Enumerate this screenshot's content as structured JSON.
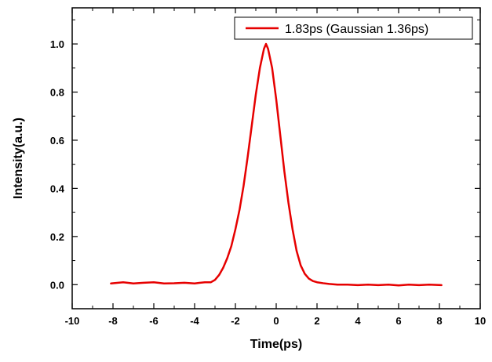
{
  "chart_data": {
    "type": "line",
    "title": "",
    "xlabel": "Time(ps)",
    "ylabel": "Intensity(a.u.)",
    "xlim": [
      -10,
      10
    ],
    "ylim": [
      -0.1,
      1.15
    ],
    "xticks": [
      -10,
      -8,
      -6,
      -4,
      -2,
      0,
      2,
      4,
      6,
      8,
      10
    ],
    "yticks": [
      0.0,
      0.2,
      0.4,
      0.6,
      0.8,
      1.0
    ],
    "xtick_labels": [
      "-10",
      "-8",
      "-6",
      "-4",
      "-2",
      "0",
      "2",
      "4",
      "6",
      "8",
      "10"
    ],
    "ytick_labels": [
      "0.0",
      "0.2",
      "0.4",
      "0.6",
      "0.8",
      "1.0"
    ],
    "grid": false,
    "legend_position": "top-right",
    "series": [
      {
        "name": "1.83ps (Gaussian 1.36ps)",
        "color": "#e60000",
        "x": [
          -8.1,
          -7.5,
          -7.0,
          -6.5,
          -6.0,
          -5.5,
          -5.0,
          -4.5,
          -4.0,
          -3.5,
          -3.2,
          -3.0,
          -2.8,
          -2.6,
          -2.4,
          -2.2,
          -2.0,
          -1.8,
          -1.6,
          -1.4,
          -1.2,
          -1.0,
          -0.8,
          -0.6,
          -0.5,
          -0.4,
          -0.2,
          0.0,
          0.2,
          0.4,
          0.6,
          0.8,
          1.0,
          1.2,
          1.4,
          1.6,
          1.8,
          2.0,
          2.3,
          2.6,
          3.0,
          3.5,
          4.0,
          4.5,
          5.0,
          5.5,
          6.0,
          6.5,
          7.0,
          7.5,
          8.1
        ],
        "y": [
          0.005,
          0.01,
          0.005,
          0.008,
          0.01,
          0.005,
          0.006,
          0.008,
          0.005,
          0.01,
          0.01,
          0.02,
          0.04,
          0.07,
          0.11,
          0.16,
          0.23,
          0.31,
          0.41,
          0.53,
          0.66,
          0.79,
          0.9,
          0.98,
          1.0,
          0.98,
          0.9,
          0.77,
          0.62,
          0.47,
          0.34,
          0.23,
          0.14,
          0.08,
          0.045,
          0.025,
          0.015,
          0.01,
          0.006,
          0.003,
          0.0,
          0.0,
          -0.002,
          0.0,
          -0.002,
          0.0,
          -0.003,
          0.0,
          -0.002,
          0.0,
          -0.002
        ]
      }
    ]
  }
}
